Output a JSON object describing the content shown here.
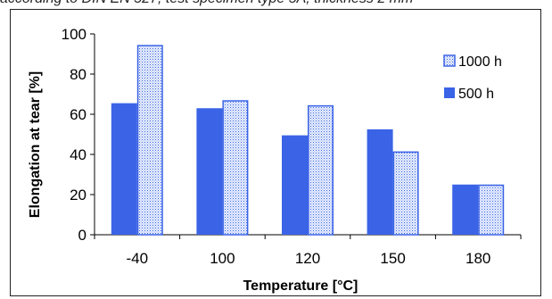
{
  "caption": "according to DIN EN 527, test specimen type 5A; thickness 2 mm",
  "chart_data": {
    "type": "bar",
    "categories": [
      "-40",
      "100",
      "120",
      "150",
      "180"
    ],
    "series": [
      {
        "name": "500 h",
        "values": [
          65.5,
          63,
          49.5,
          52.5,
          25
        ],
        "color": "#3a63e6",
        "pattern": "solid"
      },
      {
        "name": "1000 h",
        "values": [
          94.5,
          67,
          64.5,
          41.5,
          25
        ],
        "color": "#3a63e6",
        "pattern": "dotted"
      }
    ],
    "title": "",
    "xlabel": "Temperature [°C]",
    "ylabel": "Elongation at tear [%]",
    "ylim": [
      0,
      100
    ],
    "yticks": [
      0,
      20,
      40,
      60,
      80,
      100
    ],
    "grid": false,
    "legend": {
      "position": "right",
      "entries": [
        "1000 h",
        "500 h"
      ]
    }
  }
}
